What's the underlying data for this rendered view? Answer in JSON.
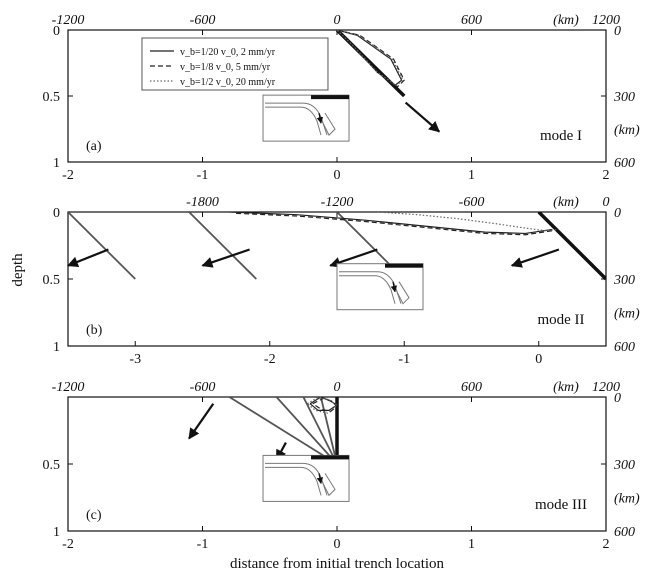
{
  "figure": {
    "ylabel": "depth",
    "xlabel": "distance from initial trench location",
    "unit_label": "(km)"
  },
  "legend": [
    {
      "label": "v_b=1/20 v_0, 2 mm/yr",
      "style": "solid"
    },
    {
      "label": "v_b=1/8 v_0, 5 mm/yr",
      "style": "dashed"
    },
    {
      "label": "v_b=1/2 v_0, 20 mm/yr",
      "style": "dotted"
    }
  ],
  "chart_data": [
    {
      "type": "line",
      "panel_label": "(a)",
      "mode_label": "mode I",
      "xlim": [
        -2,
        2
      ],
      "ylim": [
        1,
        0
      ],
      "x_ticks": [
        "-2",
        "-1",
        "0",
        "1",
        "2"
      ],
      "y_ticks": [
        "0",
        "0.5",
        "1"
      ],
      "top_ticks": [
        "-1200",
        "-600",
        "0",
        "600",
        "1200"
      ],
      "right_ticks": [
        "0",
        "300",
        "600"
      ],
      "slab_lines": [
        {
          "x": [
            0,
            0.5
          ],
          "y": [
            0,
            0.5
          ],
          "weight": "bold"
        }
      ],
      "series": [
        {
          "style": "solid",
          "x": [
            0,
            0.15,
            0.4,
            0.48,
            0.43,
            0.3,
            0.12,
            0
          ],
          "y": [
            0,
            0.04,
            0.22,
            0.38,
            0.42,
            0.32,
            0.12,
            0
          ]
        },
        {
          "style": "dashed",
          "x": [
            0,
            0.17,
            0.42,
            0.5,
            0.45,
            0.3,
            0.12,
            0
          ],
          "y": [
            0,
            0.04,
            0.22,
            0.38,
            0.43,
            0.32,
            0.12,
            0
          ]
        },
        {
          "style": "dotted",
          "x": [
            0,
            0.16,
            0.41,
            0.49,
            0.44,
            0.3,
            0.12,
            0
          ],
          "y": [
            0,
            0.04,
            0.22,
            0.38,
            0.42,
            0.32,
            0.12,
            0
          ]
        }
      ],
      "arrows": [
        {
          "x1": 0.51,
          "y1": 0.55,
          "x2": 0.76,
          "y2": 0.77
        }
      ]
    },
    {
      "type": "line",
      "panel_label": "(b)",
      "mode_label": "mode II",
      "xlim": [
        -3.5,
        0.5
      ],
      "ylim": [
        1,
        0
      ],
      "x_ticks": [
        "-3",
        "-2",
        "-1",
        "0"
      ],
      "x_tick_values": [
        -3,
        -2,
        -1,
        0
      ],
      "y_ticks": [
        "0",
        "0.5",
        "1"
      ],
      "top_ticks": [
        "-1800",
        "-1200",
        "-600",
        "0"
      ],
      "top_tick_values": [
        -2.5,
        -1.5,
        -0.5,
        0.5
      ],
      "right_ticks": [
        "0",
        "300",
        "600"
      ],
      "slab_lines": [
        {
          "x": [
            -3.5,
            -3.0
          ],
          "y": [
            0,
            0.5
          ],
          "weight": "thin"
        },
        {
          "x": [
            -2.6,
            -2.1
          ],
          "y": [
            0,
            0.5
          ],
          "weight": "thin"
        },
        {
          "x": [
            -1.5,
            -1.0
          ],
          "y": [
            0,
            0.5
          ],
          "weight": "thin"
        },
        {
          "x": [
            0,
            0.5
          ],
          "y": [
            0,
            0.5
          ],
          "weight": "bold"
        }
      ],
      "series": [
        {
          "style": "solid",
          "x": [
            -2.3,
            -1.8,
            -1.3,
            -0.8,
            -0.4,
            -0.1,
            0.1
          ],
          "y": [
            0,
            0.02,
            0.06,
            0.11,
            0.15,
            0.16,
            0.13
          ]
        },
        {
          "style": "dashed",
          "x": [
            -2.25,
            -1.8,
            -1.3,
            -0.8,
            -0.4,
            -0.1,
            0.1
          ],
          "y": [
            0.01,
            0.03,
            0.07,
            0.12,
            0.16,
            0.17,
            0.14
          ]
        },
        {
          "style": "dotted",
          "x": [
            -1.2,
            -0.9,
            -0.6,
            -0.3,
            -0.1,
            0.05,
            0.15
          ],
          "y": [
            0,
            0.02,
            0.05,
            0.09,
            0.12,
            0.14,
            0.13
          ]
        }
      ],
      "arrows": [
        {
          "x1": -3.2,
          "y1": 0.28,
          "x2": -3.5,
          "y2": 0.4
        },
        {
          "x1": -2.15,
          "y1": 0.28,
          "x2": -2.5,
          "y2": 0.4
        },
        {
          "x1": -1.2,
          "y1": 0.28,
          "x2": -1.55,
          "y2": 0.4
        },
        {
          "x1": 0.15,
          "y1": 0.28,
          "x2": -0.2,
          "y2": 0.4
        }
      ]
    },
    {
      "type": "line",
      "panel_label": "(c)",
      "mode_label": "mode III",
      "xlim": [
        -2,
        2
      ],
      "ylim": [
        1,
        0
      ],
      "x_ticks": [
        "-2",
        "-1",
        "0",
        "1",
        "2"
      ],
      "y_ticks": [
        "",
        "0.5",
        "1"
      ],
      "top_ticks": [
        "-1200",
        "-600",
        "0",
        "600",
        "1200"
      ],
      "right_ticks": [
        "0",
        "300",
        "600"
      ],
      "slab_lines": [
        {
          "x": [
            0,
            0
          ],
          "y": [
            0,
            0.5
          ],
          "weight": "bold"
        },
        {
          "x": [
            -0.8,
            0
          ],
          "y": [
            0,
            0.5
          ],
          "weight": "thin"
        },
        {
          "x": [
            -0.45,
            0
          ],
          "y": [
            0,
            0.5
          ],
          "weight": "thin"
        },
        {
          "x": [
            -0.25,
            0
          ],
          "y": [
            0,
            0.5
          ],
          "weight": "thin"
        },
        {
          "x": [
            -0.12,
            0
          ],
          "y": [
            0,
            0.5
          ],
          "weight": "thin"
        }
      ],
      "series": [
        {
          "style": "solid",
          "x": [
            -0.2,
            -0.12,
            -0.05,
            0,
            -0.06,
            -0.14,
            -0.2
          ],
          "y": [
            0.05,
            0,
            0.03,
            0.06,
            0.1,
            0.1,
            0.05
          ]
        },
        {
          "style": "dashed",
          "x": [
            -0.18,
            -0.1,
            -0.04,
            0,
            -0.05,
            -0.12,
            -0.18
          ],
          "y": [
            0.05,
            0.01,
            0.03,
            0.07,
            0.11,
            0.09,
            0.05
          ]
        },
        {
          "style": "dotted",
          "x": [
            -0.22,
            -0.14,
            -0.06,
            0,
            -0.07,
            -0.16,
            -0.22
          ],
          "y": [
            0.05,
            0,
            0.02,
            0.06,
            0.12,
            0.1,
            0.05
          ]
        }
      ],
      "arrows": [
        {
          "x1": -0.92,
          "y1": 0.05,
          "x2": -1.1,
          "y2": 0.31
        },
        {
          "x1": -0.38,
          "y1": 0.34,
          "x2": -0.45,
          "y2": 0.47
        }
      ]
    }
  ]
}
